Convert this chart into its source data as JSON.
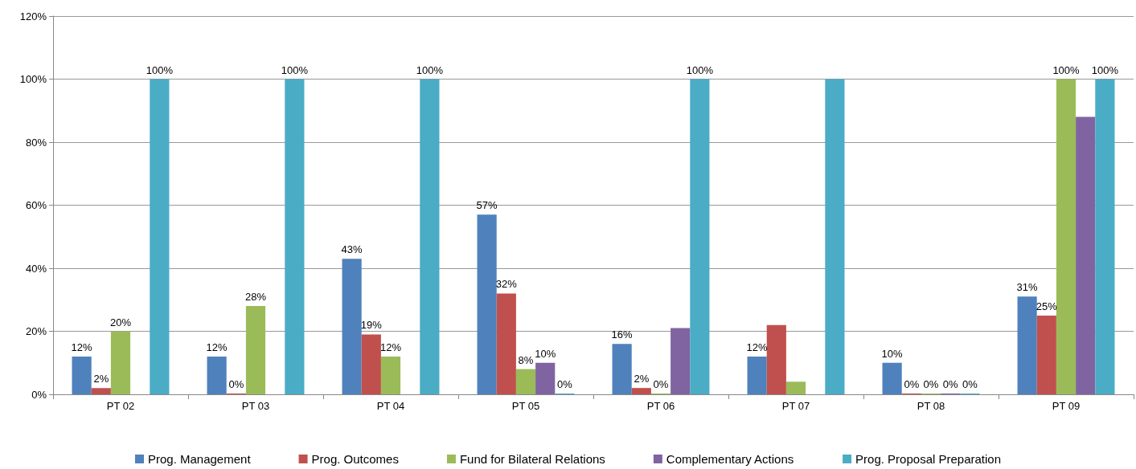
{
  "chart_data": {
    "type": "bar",
    "categories": [
      "PT 02",
      "PT 03",
      "PT 04",
      "PT 05",
      "PT 06",
      "PT 07",
      "PT 08",
      "PT 09"
    ],
    "series": [
      {
        "name": "Prog. Management",
        "color": "#4f81bd",
        "values": [
          12,
          12,
          43,
          57,
          16,
          12,
          10,
          31
        ],
        "value_labels": [
          "12%",
          "12%",
          "43%",
          "57%",
          "16%",
          "12%",
          "10%",
          "31%"
        ]
      },
      {
        "name": "Prog. Outcomes",
        "color": "#c0504d",
        "values": [
          2,
          0,
          19,
          32,
          2,
          22,
          0,
          25
        ],
        "value_labels": [
          "2%",
          "0%",
          "19%",
          "32%",
          "2%",
          null,
          "0%",
          "25%"
        ]
      },
      {
        "name": "Fund for Bilateral Relations",
        "color": "#9bbb59",
        "values": [
          20,
          28,
          12,
          8,
          0,
          4,
          0,
          100
        ],
        "value_labels": [
          "20%",
          "28%",
          "12%",
          "8%",
          "0%",
          null,
          "0%",
          "100%"
        ]
      },
      {
        "name": "Complementary Actions",
        "color": "#8064a2",
        "values": [
          null,
          null,
          null,
          10,
          21,
          null,
          0,
          88
        ],
        "value_labels": [
          null,
          null,
          null,
          "10%",
          null,
          null,
          "0%",
          null
        ]
      },
      {
        "name": "Prog. Proposal Preparation",
        "color": "#4bacc6",
        "values": [
          100,
          100,
          100,
          0,
          100,
          100,
          0,
          100
        ],
        "value_labels": [
          "100%",
          "100%",
          "100%",
          "0%",
          "100%",
          null,
          "0%",
          "100%"
        ]
      }
    ],
    "ylim": [
      0,
      120
    ],
    "yticks": [
      {
        "value": 0,
        "label": "0%"
      },
      {
        "value": 20,
        "label": "20%"
      },
      {
        "value": 40,
        "label": "40%"
      },
      {
        "value": 60,
        "label": "60%"
      },
      {
        "value": 80,
        "label": "80%"
      },
      {
        "value": 100,
        "label": "100%"
      },
      {
        "value": 120,
        "label": "120%"
      }
    ],
    "grid": "y",
    "legend": "bottom"
  }
}
